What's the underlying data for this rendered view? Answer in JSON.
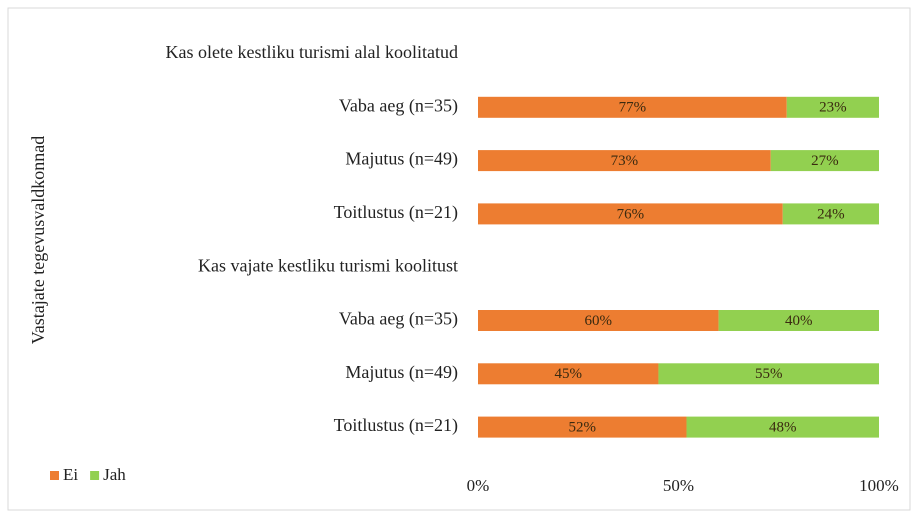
{
  "chart_data": {
    "type": "stacked_barh",
    "ylabel": "Vastajate tegevusvaldkonnad",
    "categories": [
      "Kas olete kestliku turismi alal koolitatud",
      "Vaba aeg (n=35)",
      "Majutus (n=49)",
      "Toitlustus (n=21)",
      "Kas vajate kestliku turismi koolitust",
      "Vaba aeg (n=35)",
      "Majutus (n=49)",
      "Toitlustus (n=21)"
    ],
    "series": [
      {
        "name": "Ei",
        "color": "#ed7d31",
        "values": [
          null,
          77,
          73,
          76,
          null,
          60,
          45,
          52
        ],
        "value_labels": [
          null,
          "77%",
          "73%",
          "76%",
          null,
          "60%",
          "45%",
          "52%"
        ]
      },
      {
        "name": "Jah",
        "color": "#92d050",
        "values": [
          null,
          23,
          27,
          24,
          null,
          40,
          55,
          48
        ],
        "value_labels": [
          null,
          "23%",
          "27%",
          "24%",
          null,
          "40%",
          "55%",
          "48%"
        ]
      }
    ],
    "xlim": [
      0,
      100
    ],
    "xticks": [
      {
        "value": 0,
        "label": "0%"
      },
      {
        "value": 50,
        "label": "50%"
      },
      {
        "value": 100,
        "label": "100%"
      }
    ],
    "legend": "bottom-left"
  }
}
